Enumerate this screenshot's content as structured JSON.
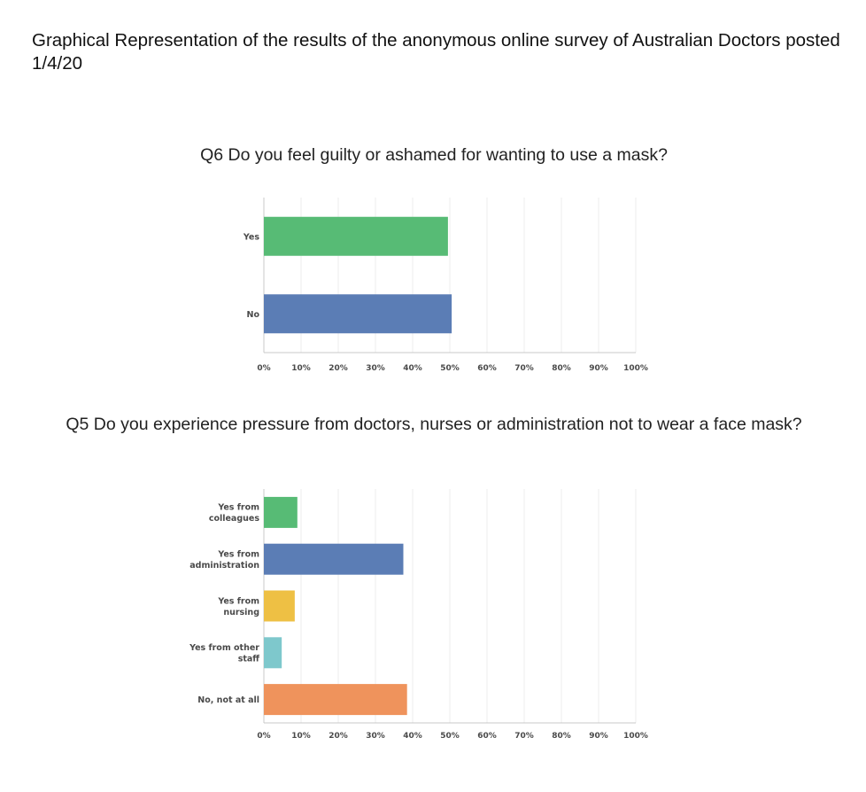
{
  "page_title": "Graphical Representation of the results of the anonymous online survey of Australian Doctors posted 1/4/20",
  "chart_data": [
    {
      "type": "bar",
      "orientation": "horizontal",
      "title": "Q6 Do you feel guilty or ashamed for wanting to use a mask?",
      "categories": [
        "Yes",
        "No"
      ],
      "values": [
        49.5,
        50.5
      ],
      "colors": [
        "#57bb75",
        "#5b7db5"
      ],
      "xlim": [
        0,
        100
      ],
      "x_ticks": [
        "0%",
        "10%",
        "20%",
        "30%",
        "40%",
        "50%",
        "60%",
        "70%",
        "80%",
        "90%",
        "100%"
      ],
      "grid": true,
      "xlabel": "",
      "ylabel": ""
    },
    {
      "type": "bar",
      "orientation": "horizontal",
      "title": "Q5 Do you experience pressure from doctors, nurses or administration not to wear a face mask?",
      "categories": [
        [
          "Yes from",
          "colleagues"
        ],
        [
          "Yes from",
          "administration"
        ],
        [
          "Yes from",
          "nursing"
        ],
        [
          "Yes from other",
          "staff"
        ],
        [
          "No, not at all"
        ]
      ],
      "values": [
        9,
        37.5,
        8.3,
        4.8,
        38.5
      ],
      "colors": [
        "#57bb75",
        "#5b7db5",
        "#eec044",
        "#7ec8cc",
        "#ef935c"
      ],
      "xlim": [
        0,
        100
      ],
      "x_ticks": [
        "0%",
        "10%",
        "20%",
        "30%",
        "40%",
        "50%",
        "60%",
        "70%",
        "80%",
        "90%",
        "100%"
      ],
      "grid": true,
      "xlabel": "",
      "ylabel": ""
    }
  ]
}
